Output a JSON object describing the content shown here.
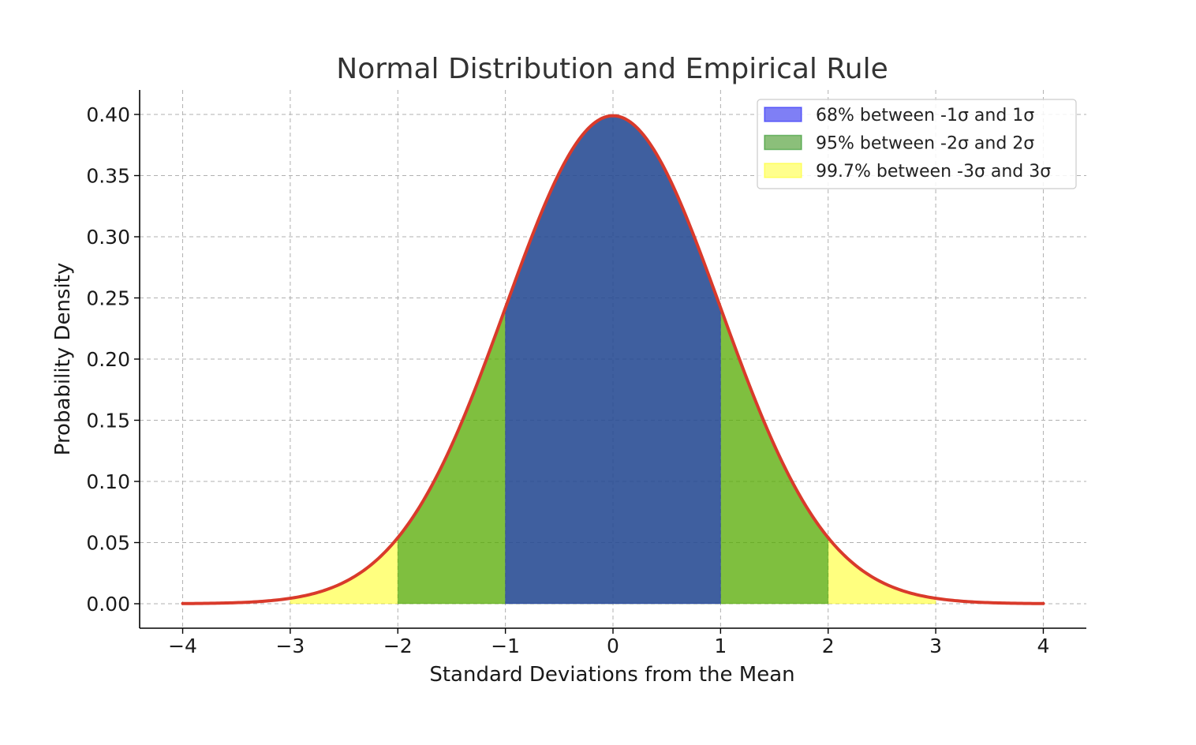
{
  "chart_data": {
    "type": "area",
    "title": "Normal Distribution and Empirical Rule",
    "xlabel": "Standard Deviations from the Mean",
    "ylabel": "Probability Density",
    "xlim": [
      -4.4,
      4.4
    ],
    "ylim": [
      -0.02,
      0.42
    ],
    "x_ticks": [
      -4,
      -3,
      -2,
      -1,
      0,
      1,
      2,
      3,
      4
    ],
    "x_tick_labels": [
      "−4",
      "−3",
      "−2",
      "−1",
      "0",
      "1",
      "2",
      "3",
      "4"
    ],
    "y_ticks": [
      0.0,
      0.05,
      0.1,
      0.15,
      0.2,
      0.25,
      0.3,
      0.35,
      0.4
    ],
    "y_tick_labels": [
      "0.00",
      "0.05",
      "0.10",
      "0.15",
      "0.20",
      "0.25",
      "0.30",
      "0.35",
      "0.40"
    ],
    "grid": true,
    "legend_position": "top-right",
    "curve": {
      "color": "#d93a2b",
      "mean": 0,
      "sd": 1,
      "x": [
        -4,
        -3.5,
        -3,
        -2.5,
        -2,
        -1.5,
        -1,
        -0.5,
        0,
        0.5,
        1,
        1.5,
        2,
        2.5,
        3,
        3.5,
        4
      ],
      "y": [
        0.0001,
        0.0009,
        0.0044,
        0.0175,
        0.054,
        0.1295,
        0.242,
        0.3521,
        0.3989,
        0.3521,
        0.242,
        0.1295,
        0.054,
        0.0175,
        0.0044,
        0.0009,
        0.0001
      ]
    },
    "series": [
      {
        "name": "68% between -1σ and 1σ",
        "from": -1,
        "to": 1,
        "color": "#0000ff",
        "legend_color": "#7f7ff5"
      },
      {
        "name": "95% between -2σ and 2σ",
        "from": -2,
        "to": 2,
        "color": "#008000",
        "legend_color": "#8bbf7a"
      },
      {
        "name": "99.7% between -3σ and 3σ",
        "from": -3,
        "to": 3,
        "color": "#ffff00",
        "legend_color": "#ffff8c"
      }
    ]
  }
}
